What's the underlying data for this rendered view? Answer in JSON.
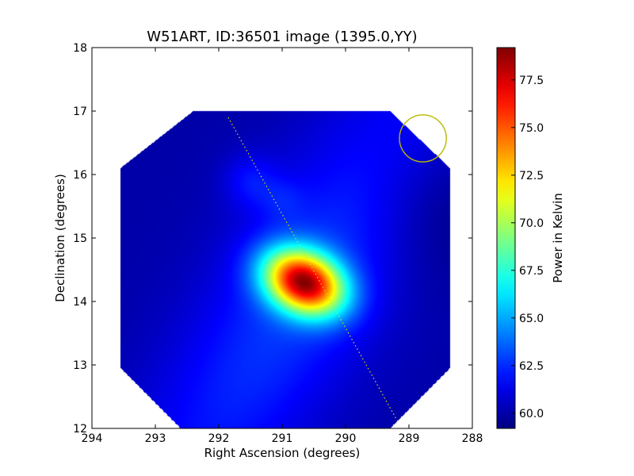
{
  "chart_data": {
    "type": "heatmap",
    "title": "W51ART, ID:36501 image (1395.0,YY)",
    "xlabel": "Right Ascension (degrees)",
    "ylabel": "Declination (degrees)",
    "xlim": [
      294,
      288
    ],
    "ylim": [
      12,
      18
    ],
    "x_ticks": [
      294,
      293,
      292,
      291,
      290,
      289,
      288
    ],
    "y_ticks": [
      12,
      13,
      14,
      15,
      16,
      17,
      18
    ],
    "x_tick_labels": [
      "294",
      "293",
      "292",
      "291",
      "290",
      "289",
      "288"
    ],
    "y_tick_labels": [
      "12",
      "13",
      "14",
      "15",
      "16",
      "17",
      "18"
    ],
    "colorbar": {
      "label": "Power in Kelvin",
      "range": [
        59.2,
        79.2
      ],
      "ticks": [
        60.0,
        62.5,
        65.0,
        67.5,
        70.0,
        72.5,
        75.0,
        77.5
      ],
      "tick_labels": [
        "60.0",
        "62.5",
        "65.0",
        "67.5",
        "70.0",
        "72.5",
        "75.0",
        "77.5"
      ],
      "colormap": "jet"
    },
    "map_footprint": {
      "shape": "octagon",
      "vertices": [
        [
          292.4,
          17.0
        ],
        [
          289.3,
          17.0
        ],
        [
          288.35,
          16.1
        ],
        [
          288.35,
          12.95
        ],
        [
          289.3,
          12.0
        ],
        [
          292.6,
          12.0
        ],
        [
          293.55,
          12.95
        ],
        [
          293.55,
          16.1
        ]
      ]
    },
    "background_level": 60.0,
    "sources": [
      {
        "ra": 290.65,
        "dec": 14.3,
        "peak": 79.0
      },
      {
        "ra": 291.5,
        "dec": 15.9,
        "peak": 61.6
      }
    ],
    "galactic_plane_line": {
      "style": "dotted",
      "color": "#d8e000",
      "from": [
        291.85,
        16.9
      ],
      "to": [
        289.2,
        12.15
      ]
    },
    "beam_circle": {
      "ra": 288.78,
      "dec": 16.57,
      "radius_deg": 0.37,
      "color": "#b8b800"
    }
  }
}
